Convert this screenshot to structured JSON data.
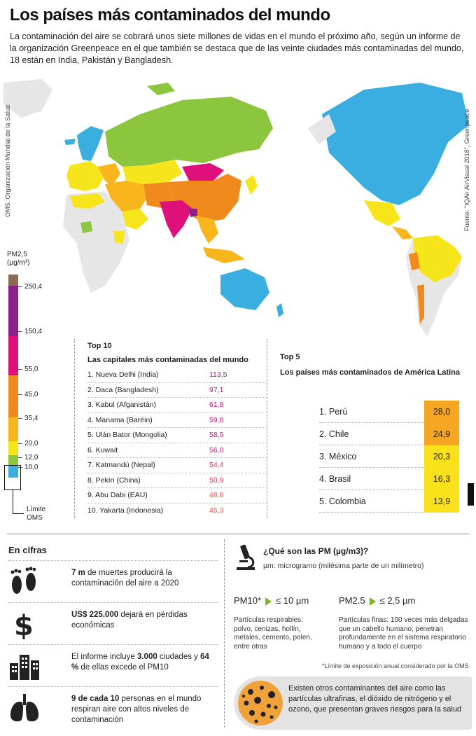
{
  "header": {
    "title": "Los países más contaminados del mundo",
    "intro": "La contaminación del aire se cobrará unos siete millones de vidas en el mundo el próximo año, según un informe de la organización Greenpeace en el que también se destaca que de las veinte ciudades más contaminadas del mundo, 18 están en India, Pakistán y Bangladesh."
  },
  "map": {
    "credit_left": "OMS: Organización Mundial de la Salud",
    "credit_right": "Fuente: \"IQAir AirVisual 2018\", Greenpeace"
  },
  "legend": {
    "title_line1": "PM2,5",
    "title_line2": "(µg/m³)",
    "ticks": [
      "250,4",
      "150,4",
      "55,0",
      "45,0",
      "35,4",
      "20,0",
      "12,0",
      "10,0"
    ],
    "who_label_line1": "Límite",
    "who_label_line2": "OMS",
    "colors": {
      "hazardous": "#8b6a52",
      "very_unhealthy": "#8e1f8a",
      "unhealthy": "#e0107a",
      "sensitive": "#f08a1c",
      "moderate_high": "#f8b51c",
      "moderate": "#f7e51b",
      "good": "#8cc63e",
      "who": "#3aaee0"
    }
  },
  "top10": {
    "heading": "Top 10",
    "subheading": "Las capitales más contaminadas del mundo",
    "rows": [
      {
        "name": "1. Nueva Delhi (India)",
        "value": "113,5",
        "color": "#8e1f8a"
      },
      {
        "name": "2. Daca (Bangladesh)",
        "value": "97,1",
        "color": "#c0147e"
      },
      {
        "name": "3. Kabul (Afganistán)",
        "value": "61,8",
        "color": "#c0147e"
      },
      {
        "name": "4. Manama (Baréin)",
        "value": "59,8",
        "color": "#c0147e"
      },
      {
        "name": "5. Ulán Bator (Mongolia)",
        "value": "58,5",
        "color": "#c0147e"
      },
      {
        "name": "6. Kuwait",
        "value": "56,0",
        "color": "#c0147e"
      },
      {
        "name": "7. Katmandú (Nepal)",
        "value": "54,4",
        "color": "#d8365a"
      },
      {
        "name": "8. Pekín (China)",
        "value": "50,9",
        "color": "#d8365a"
      },
      {
        "name": "9. Abu Dabi (EAU)",
        "value": "48,8",
        "color": "#e05a4a"
      },
      {
        "name": "10. Yakarta (Indonesia)",
        "value": "45,3",
        "color": "#e05a4a"
      }
    ]
  },
  "top5": {
    "heading": "Top 5",
    "subheading": "Los países más contaminados de América Latina",
    "rows": [
      {
        "name": "1. Perú",
        "value": "28,0",
        "color": "#f5a623"
      },
      {
        "name": "2. Chile",
        "value": "24,9",
        "color": "#f5a623"
      },
      {
        "name": "3. México",
        "value": "20,3",
        "color": "#f9e21b"
      },
      {
        "name": "4. Brasil",
        "value": "16,3",
        "color": "#f9e21b"
      },
      {
        "name": "5. Colombia",
        "value": "13,9",
        "color": "#f9e21b"
      }
    ]
  },
  "cifras": {
    "title": "En cifras",
    "items": [
      {
        "icon": "footprints-icon",
        "bold": "7 m",
        "text": " de muertes producirá la contaminación del aire a 2020"
      },
      {
        "icon": "dollar-icon",
        "bold": "US$ 225.000",
        "text": " dejará en pérdidas económicas"
      },
      {
        "icon": "buildings-icon",
        "pre": "El informe incluye ",
        "bold": "3.000",
        "text": " ciudades y ",
        "bold2": "64 %",
        "text2": " de ellas excede el PM10"
      },
      {
        "icon": "lungs-icon",
        "bold": "9 de cada 10",
        "text": " personas en el mundo respiran aire con altos niveles de contaminación"
      }
    ]
  },
  "pm": {
    "title": "¿Qué son las PM (µg/m3)?",
    "micro": "µm: microgramo (milésima parte de un milímetro)",
    "pm10_label": "PM10*",
    "pm10_limit": "≤ 10 µm",
    "pm10_text": "Partículas respirables: polvo, cenizas, hollín, metales, cemento, polen, entre otras",
    "pm25_label": "PM2.5",
    "pm25_limit": "≤ 2,5 µm",
    "pm25_text": "Partículas finas: 100 veces más delgadas que un cabello humano; penetran profundamente en el sistema respiratorio humano y a todo el cuerpo",
    "note": "*Límite de exposición anual considerado por la OMS",
    "box_text": "Existen otros contaminantes del aire como las partículas ultrafinas, el dióxido de nitrógeno y el ozono, que presentan graves riesgos para la salud"
  }
}
